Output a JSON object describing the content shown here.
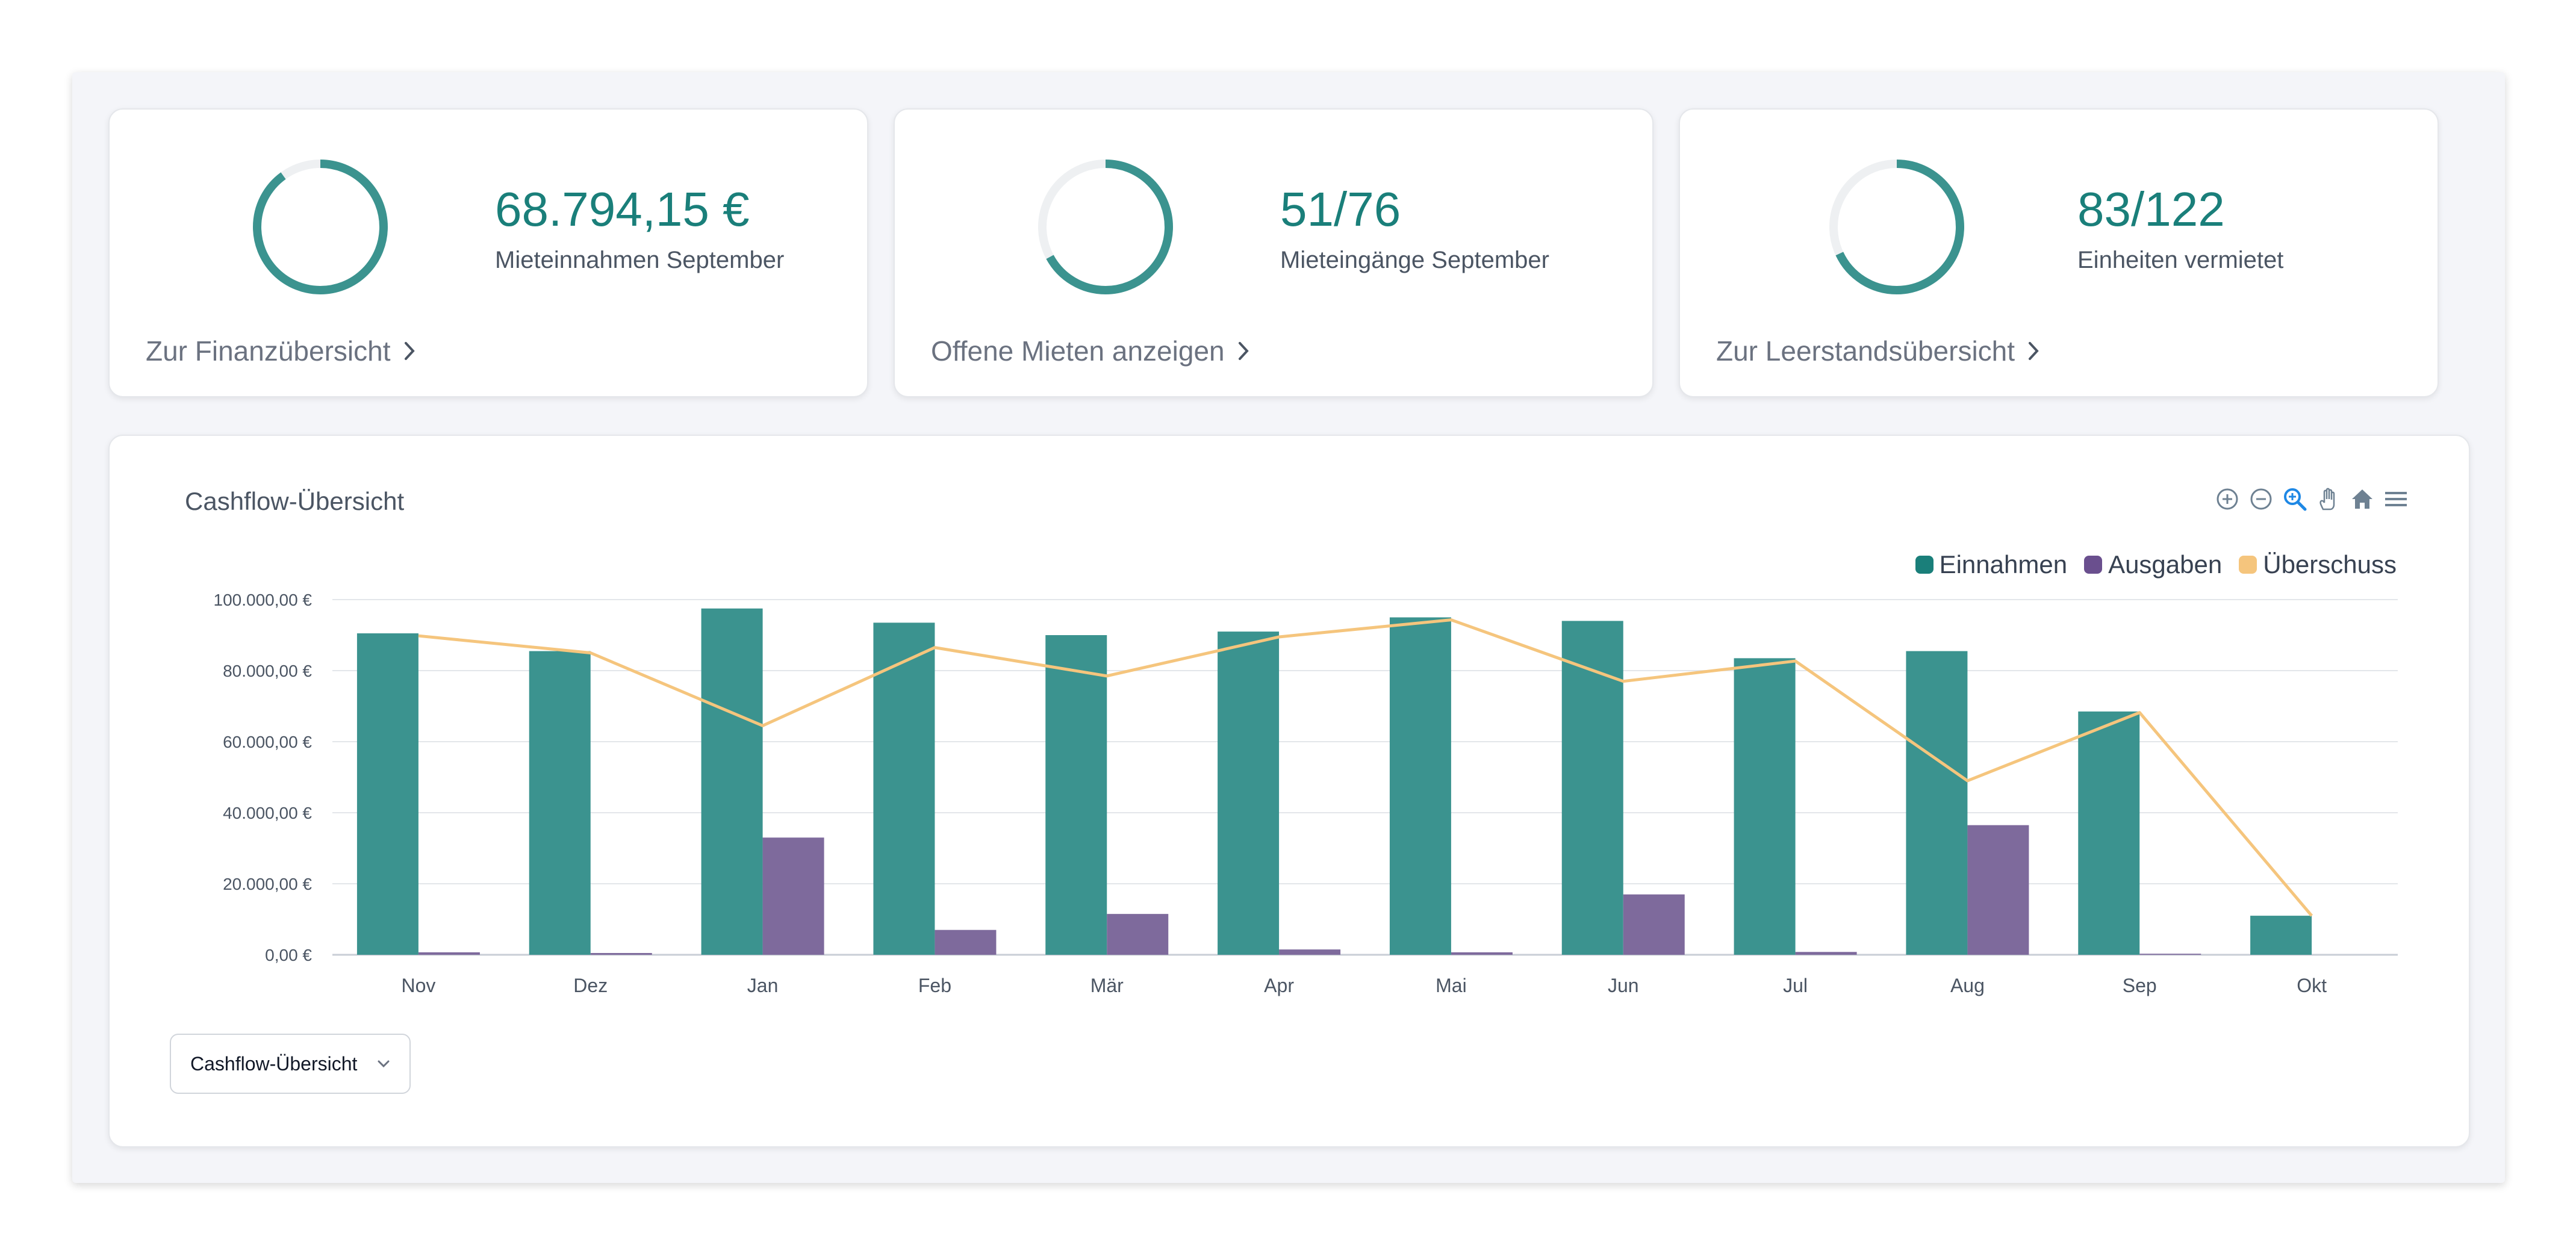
{
  "kpis": [
    {
      "value": "68.794,15 €",
      "label": "Mieteinnahmen September",
      "link": "Zur Finanzübersicht",
      "fraction": 0.9
    },
    {
      "value": "51/76",
      "label": "Mieteingänge September",
      "link": "Offene Mieten anzeigen",
      "fraction": 0.6711
    },
    {
      "value": "83/122",
      "label": "Einheiten vermietet",
      "link": "Zur Leerstandsübersicht",
      "fraction": 0.6803
    }
  ],
  "colors": {
    "accent": "#3b938f",
    "ring_track": "#eef0f2",
    "einnahmen": "#3b938f",
    "ausgaben": "#7e6a9c",
    "ueberschuss": "#f5c57d"
  },
  "chart": {
    "title": "Cashflow-Übersicht",
    "toolbar": [
      "zoom-in-icon",
      "zoom-out-icon",
      "selection-zoom-icon",
      "pan-icon",
      "home-icon",
      "menu-icon"
    ]
  },
  "select": {
    "value": "Cashflow-Übersicht"
  },
  "chart_data": {
    "type": "bar",
    "categories": [
      "Nov",
      "Dez",
      "Jan",
      "Feb",
      "Mär",
      "Apr",
      "Mai",
      "Jun",
      "Jul",
      "Aug",
      "Sep",
      "Okt"
    ],
    "series": [
      {
        "name": "Einnahmen",
        "type": "bar",
        "values": [
          90500,
          85500,
          97500,
          93500,
          90000,
          91000,
          95000,
          94000,
          83500,
          85500,
          68500,
          11000
        ]
      },
      {
        "name": "Ausgaben",
        "type": "bar",
        "values": [
          700,
          500,
          33000,
          7000,
          11500,
          1500,
          700,
          17000,
          800,
          36500,
          300,
          0
        ]
      },
      {
        "name": "Überschuss",
        "type": "line",
        "values": [
          89800,
          85000,
          64500,
          86500,
          78500,
          89500,
          94300,
          77000,
          82700,
          49000,
          68200,
          11000
        ]
      }
    ],
    "yticks": [
      "0,00 €",
      "20.000,00 €",
      "40.000,00 €",
      "60.000,00 €",
      "80.000,00 €",
      "100.000,00 €"
    ],
    "ylim": [
      0,
      100000
    ],
    "legend": "top-right",
    "grid": true
  }
}
